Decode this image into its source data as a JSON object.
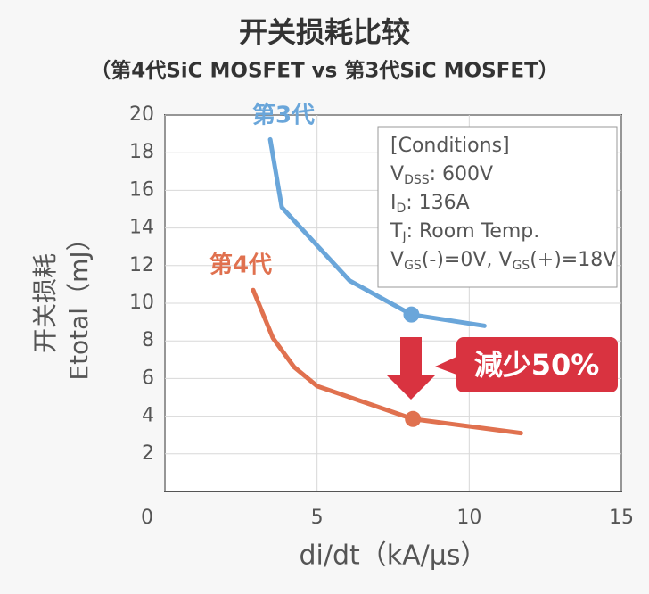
{
  "chart_data": {
    "type": "line",
    "title": "开关损耗比较",
    "subtitle": "（第4代SiC MOSFET vs 第3代SiC MOSFET）",
    "ylabel": [
      "开关损耗",
      "Etotal（mJ）"
    ],
    "xlabel": "di/dt（kA/μs）",
    "xlim": [
      0,
      15
    ],
    "xticks": [
      0,
      5,
      10,
      15
    ],
    "ylim": [
      0,
      20
    ],
    "yticks": [
      2,
      4,
      6,
      8,
      10,
      12,
      14,
      16,
      18,
      20
    ],
    "grid": true,
    "series": [
      {
        "name": "第3代",
        "color": "#6aa6da",
        "x": [
          3.46,
          3.84,
          6.07,
          8.1,
          10.5
        ],
        "values": [
          18.7,
          15.1,
          11.2,
          9.4,
          8.8
        ],
        "marker_at": 3
      },
      {
        "name": "第4代",
        "color": "#e0714f",
        "x": [
          2.9,
          3.55,
          4.25,
          5.0,
          8.15,
          11.7
        ],
        "values": [
          10.7,
          8.15,
          6.6,
          5.6,
          3.85,
          3.1
        ],
        "marker_at": 4
      }
    ],
    "conditions": [
      [
        "[Conditions]"
      ],
      [
        "V",
        "DSS",
        ": 600V"
      ],
      [
        "I",
        "D",
        ": 136A"
      ],
      [
        "T",
        "J",
        ": Room Temp."
      ],
      [
        "V",
        "GS",
        "(-)=0V, V",
        "GS",
        "(+)=18V"
      ]
    ],
    "annotation": "減少50%"
  }
}
